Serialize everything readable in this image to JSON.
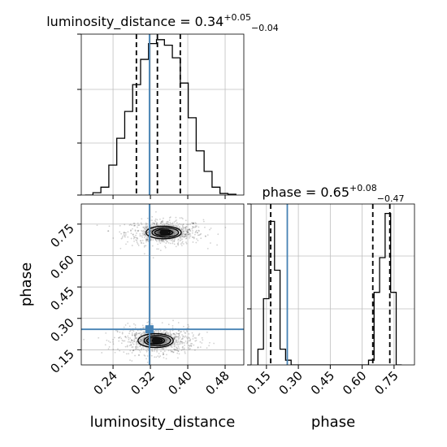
{
  "chart_data": {
    "type": "corner",
    "parameters": [
      "luminosity_distance",
      "phase"
    ],
    "truths": {
      "luminosity_distance": 0.318,
      "phase": 0.248
    },
    "panels": [
      {
        "id": "hist-luminosity-distance",
        "type": "histogram",
        "title_prefix": "luminosity_distance = 0.34",
        "title_sup": "+0.05",
        "title_sub": "−0.04",
        "xlim": [
          0.172,
          0.52
        ],
        "ylim": [
          0,
          1.02
        ],
        "bin_edges": [
          0.18,
          0.197,
          0.214,
          0.231,
          0.248,
          0.265,
          0.282,
          0.299,
          0.316,
          0.333,
          0.35,
          0.367,
          0.384,
          0.401,
          0.418,
          0.435,
          0.452,
          0.469,
          0.486,
          0.503
        ],
        "counts": [
          0.0,
          0.015,
          0.05,
          0.19,
          0.36,
          0.53,
          0.7,
          0.86,
          0.96,
          0.985,
          0.95,
          0.87,
          0.71,
          0.49,
          0.28,
          0.15,
          0.05,
          0.01,
          0.005
        ],
        "quantiles": [
          0.29,
          0.335,
          0.384
        ],
        "truth": 0.318
      },
      {
        "id": "hist-phase",
        "type": "histogram",
        "title_prefix": "phase = 0.65",
        "title_sup": "+0.08",
        "title_sub": "−0.47",
        "xlim": [
          0.078,
          0.846
        ],
        "ylim": [
          0,
          1.02
        ],
        "xticks": [
          "0.15",
          "0.30",
          "0.45",
          "0.60",
          "0.75"
        ],
        "xtick_values": [
          0.15,
          0.3,
          0.45,
          0.6,
          0.75
        ],
        "xlabel": "phase",
        "bin_edges": [
          0.11,
          0.136,
          0.162,
          0.188,
          0.214,
          0.24,
          0.266,
          0.292,
          0.318,
          0.344,
          0.37,
          0.396,
          0.422,
          0.448,
          0.474,
          0.5,
          0.526,
          0.552,
          0.578,
          0.604,
          0.63,
          0.656,
          0.682,
          0.708,
          0.734,
          0.76,
          0.786
        ],
        "counts": [
          0.1,
          0.42,
          0.91,
          0.6,
          0.1,
          0.03,
          0.0,
          0.0,
          0.0,
          0.0,
          0.0,
          0.0,
          0.0,
          0.0,
          0.0,
          0.0,
          0.0,
          0.0,
          0.0,
          0.0,
          0.03,
          0.46,
          0.68,
          0.96,
          0.46,
          0.0
        ],
        "quantiles": [
          0.17,
          0.65,
          0.73
        ],
        "truth": 0.248
      },
      {
        "id": "scatter-2d",
        "type": "density2d",
        "xlim": [
          0.172,
          0.52
        ],
        "ylim": [
          0.078,
          0.846
        ],
        "xticks": [
          "0.24",
          "0.32",
          "0.40",
          "0.48"
        ],
        "xtick_values": [
          0.24,
          0.32,
          0.4,
          0.48
        ],
        "yticks": [
          "0.15",
          "0.30",
          "0.45",
          "0.60",
          "0.75"
        ],
        "ytick_values": [
          0.15,
          0.3,
          0.45,
          0.6,
          0.75
        ],
        "xlabel": "luminosity_distance",
        "ylabel": "phase",
        "modes": [
          {
            "cx": 0.35,
            "cy": 0.71,
            "sx": 0.036,
            "sy": 0.03
          },
          {
            "cx": 0.333,
            "cy": 0.194,
            "sx": 0.036,
            "sy": 0.033
          }
        ],
        "truth_point": [
          0.318,
          0.248
        ]
      }
    ],
    "colors": {
      "truth": "#4682b4",
      "line": "#000000",
      "grid": "#bfbfbf"
    },
    "grid": true
  }
}
